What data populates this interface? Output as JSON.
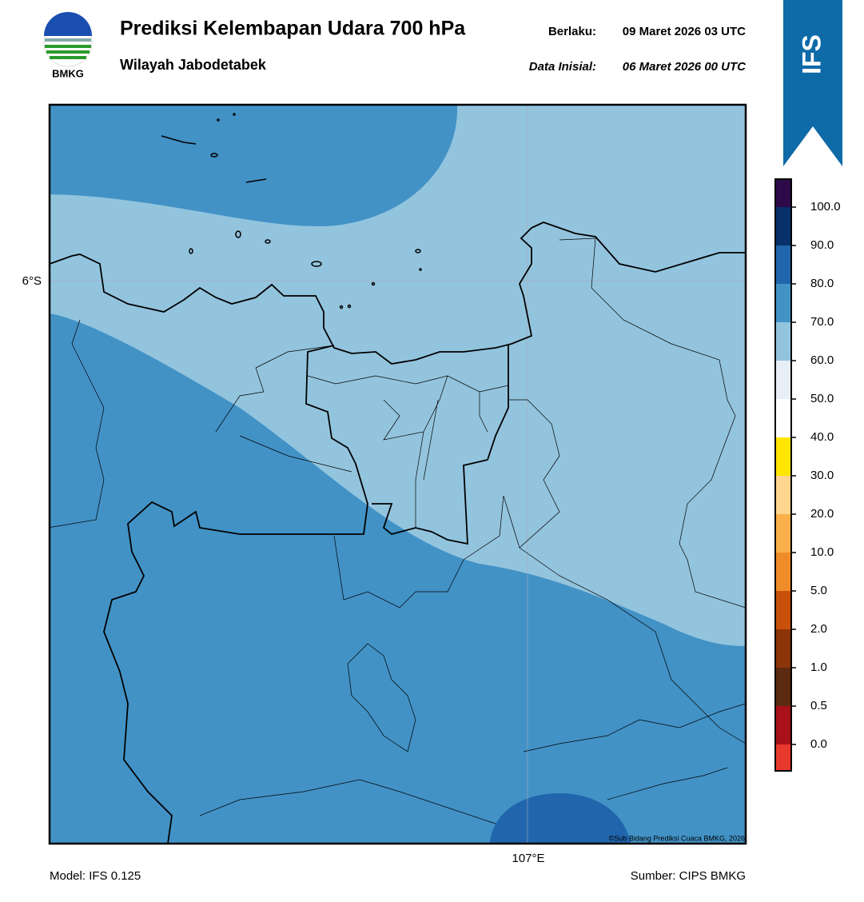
{
  "header": {
    "logo_text": "BMKG",
    "title": "Prediksi Kelembapan Udara 700 hPa",
    "subtitle": "Wilayah Jabodetabek",
    "valid_label": "Berlaku:",
    "valid_time": "09 Maret 2026 03 UTC",
    "init_label": "Data Inisial:",
    "init_time": "06 Maret 2026 00 UTC",
    "model_badge": "IFS"
  },
  "map": {
    "lat_label": "6°S",
    "lon_label": "107°E",
    "credit": "©Sub Bidang Prediksi Cuaca BMKG, 2026"
  },
  "colorbar": {
    "colors": [
      "#e8392d",
      "#a8101a",
      "#5c2a10",
      "#8c3508",
      "#c8500a",
      "#f08c28",
      "#f9b04a",
      "#fdd58e",
      "#ffe600",
      "#ffffff",
      "#e8eef6",
      "#93c4de",
      "#4292c6",
      "#2166ac",
      "#08306b",
      "#2d0a4a"
    ],
    "ticks": [
      {
        "value": 0,
        "label": "0.0"
      },
      {
        "value": 0.5,
        "label": "0.5"
      },
      {
        "value": 1,
        "label": "1.0"
      },
      {
        "value": 2,
        "label": "2.0"
      },
      {
        "value": 5,
        "label": "5.0"
      },
      {
        "value": 10,
        "label": "10.0"
      },
      {
        "value": 20,
        "label": "20.0"
      },
      {
        "value": 30,
        "label": "30.0"
      },
      {
        "value": 40,
        "label": "40.0"
      },
      {
        "value": 50,
        "label": "50.0"
      },
      {
        "value": 60,
        "label": "60.0"
      },
      {
        "value": 70,
        "label": "70.0"
      },
      {
        "value": 80,
        "label": "80.0"
      },
      {
        "value": 90,
        "label": "90.0"
      },
      {
        "value": 100,
        "label": "100.0"
      }
    ]
  },
  "footer": {
    "model": "Model: IFS 0.125",
    "source": "Sumber: CIPS BMKG"
  }
}
